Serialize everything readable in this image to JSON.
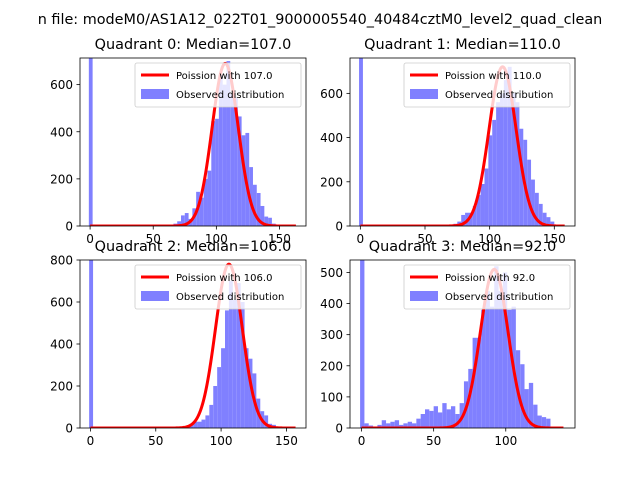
{
  "figure": {
    "suptitle": "n file: modeM0/AS1A12_022T01_9000005540_40484cztM0_level2_quad_clean"
  },
  "colors": {
    "hist": "#8080ff",
    "fit": "#ff0000"
  },
  "chart_data": [
    {
      "type": "bar+line",
      "title": "Quadrant 0: Median=107.0",
      "xlim": [
        -8,
        171
      ],
      "ylim": [
        0,
        713
      ],
      "xticks": [
        0,
        50,
        100,
        150
      ],
      "yticks": [
        0,
        200,
        400,
        600
      ],
      "legend_position": "upper right",
      "legend": [
        "Poission with 107.0",
        "Observed distribution"
      ],
      "fit_peak": [
        107,
        690
      ],
      "zero_bin": [
        0,
        713
      ],
      "hist_x": [
        66,
        69,
        72,
        75,
        78,
        81,
        84,
        87,
        90,
        93,
        96,
        99,
        102,
        105,
        108,
        111,
        114,
        117,
        120,
        123,
        126,
        129,
        132,
        135,
        138,
        141,
        144
      ],
      "hist_y": [
        10,
        20,
        45,
        55,
        30,
        75,
        145,
        120,
        200,
        235,
        445,
        455,
        640,
        600,
        700,
        560,
        545,
        465,
        385,
        395,
        250,
        175,
        140,
        85,
        40,
        35,
        10
      ]
    },
    {
      "type": "bar+line",
      "title": "Quadrant 1: Median=110.0",
      "xlim": [
        -8,
        166
      ],
      "ylim": [
        0,
        760
      ],
      "xticks": [
        0,
        50,
        100,
        150
      ],
      "yticks": [
        0,
        200,
        400,
        600
      ],
      "legend_position": "upper right",
      "legend": [
        "Poission with 110.0",
        "Observed distribution"
      ],
      "fit_peak": [
        110,
        720
      ],
      "zero_bin": [
        0,
        760
      ],
      "hist_x": [
        72,
        75,
        78,
        81,
        84,
        87,
        90,
        93,
        96,
        99,
        102,
        105,
        108,
        111,
        114,
        117,
        120,
        123,
        126,
        129,
        132,
        135,
        138,
        141,
        144,
        147
      ],
      "hist_y": [
        10,
        20,
        50,
        60,
        60,
        90,
        140,
        190,
        260,
        410,
        480,
        560,
        600,
        660,
        720,
        600,
        560,
        440,
        390,
        300,
        210,
        150,
        100,
        60,
        40,
        20
      ]
    },
    {
      "type": "bar+line",
      "title": "Quadrant 2: Median=106.0",
      "xlim": [
        -8,
        165
      ],
      "ylim": [
        0,
        800
      ],
      "xticks": [
        0,
        50,
        100,
        150
      ],
      "yticks": [
        0,
        200,
        400,
        600,
        800
      ],
      "legend_position": "upper right",
      "legend": [
        "Poission with 106.0",
        "Observed distribution"
      ],
      "fit_peak": [
        106,
        780
      ],
      "zero_bin": [
        0,
        800
      ],
      "hist_x": [
        73,
        76,
        79,
        82,
        85,
        88,
        91,
        94,
        97,
        100,
        103,
        106,
        109,
        112,
        115,
        118,
        121,
        124,
        127,
        130,
        133,
        136,
        139,
        142
      ],
      "hist_y": [
        10,
        20,
        30,
        30,
        40,
        60,
        110,
        200,
        290,
        380,
        560,
        700,
        610,
        690,
        600,
        380,
        330,
        260,
        140,
        80,
        60,
        20,
        15,
        5
      ]
    },
    {
      "type": "bar+line",
      "title": "Quadrant 3: Median=92.0",
      "xlim": [
        -8,
        148
      ],
      "ylim": [
        0,
        540
      ],
      "xticks": [
        0,
        50,
        100
      ],
      "yticks": [
        0,
        100,
        200,
        300,
        400,
        500
      ],
      "legend_position": "upper right",
      "legend": [
        "Poission with 92.0",
        "Observed distribution"
      ],
      "fit_peak": [
        92,
        510
      ],
      "zero_bin": [
        0,
        540
      ],
      "hist_x": [
        2,
        5,
        8,
        11,
        14,
        17,
        20,
        23,
        26,
        29,
        32,
        35,
        38,
        41,
        44,
        47,
        50,
        53,
        56,
        59,
        62,
        65,
        68,
        71,
        74,
        77,
        80,
        83,
        86,
        89,
        92,
        95,
        98,
        101,
        104,
        107,
        110,
        113,
        116,
        119,
        122,
        125,
        128
      ],
      "hist_y": [
        15,
        8,
        5,
        10,
        25,
        15,
        20,
        25,
        10,
        15,
        20,
        15,
        30,
        45,
        60,
        55,
        70,
        50,
        80,
        60,
        70,
        45,
        80,
        150,
        190,
        290,
        290,
        380,
        440,
        390,
        520,
        440,
        500,
        380,
        390,
        250,
        205,
        125,
        145,
        75,
        40,
        35,
        30
      ]
    }
  ]
}
